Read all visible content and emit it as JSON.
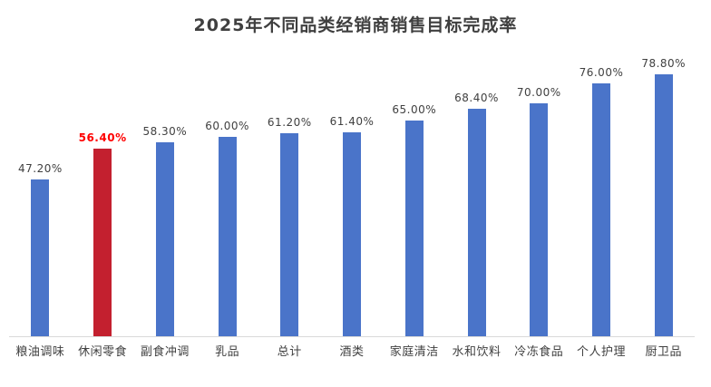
{
  "title": "2025年不同品类经销商销售目标完成率",
  "colors": {
    "bar": "#4a74c9",
    "highlight_bar": "#c3202f",
    "data_label": "#404040",
    "highlight_data_label": "#ff0000",
    "axis_line": "#d9d9d9",
    "title_text": "#3f3f3f",
    "background": "#ffffff"
  },
  "chart_data": {
    "type": "bar",
    "title": "2025年不同品类经销商销售目标完成率",
    "categories": [
      "粮油调味",
      "休闲零食",
      "副食冲调",
      "乳品",
      "总计",
      "酒类",
      "家庭清洁",
      "水和饮料",
      "冷冻食品",
      "个人护理",
      "厨卫品"
    ],
    "values": [
      47.2,
      56.4,
      58.3,
      60.0,
      61.2,
      61.4,
      65.0,
      68.4,
      70.0,
      76.0,
      78.8
    ],
    "value_labels": [
      "47.20%",
      "56.40%",
      "58.30%",
      "60.00%",
      "61.20%",
      "61.40%",
      "65.00%",
      "68.40%",
      "70.00%",
      "76.00%",
      "78.80%"
    ],
    "highlight_index": 1,
    "xlabel": "",
    "ylabel": "",
    "ylim": [
      0,
      90
    ],
    "grid": false,
    "legend": "none",
    "y_axis_visible": false,
    "data_labels_position": "above-bars"
  }
}
